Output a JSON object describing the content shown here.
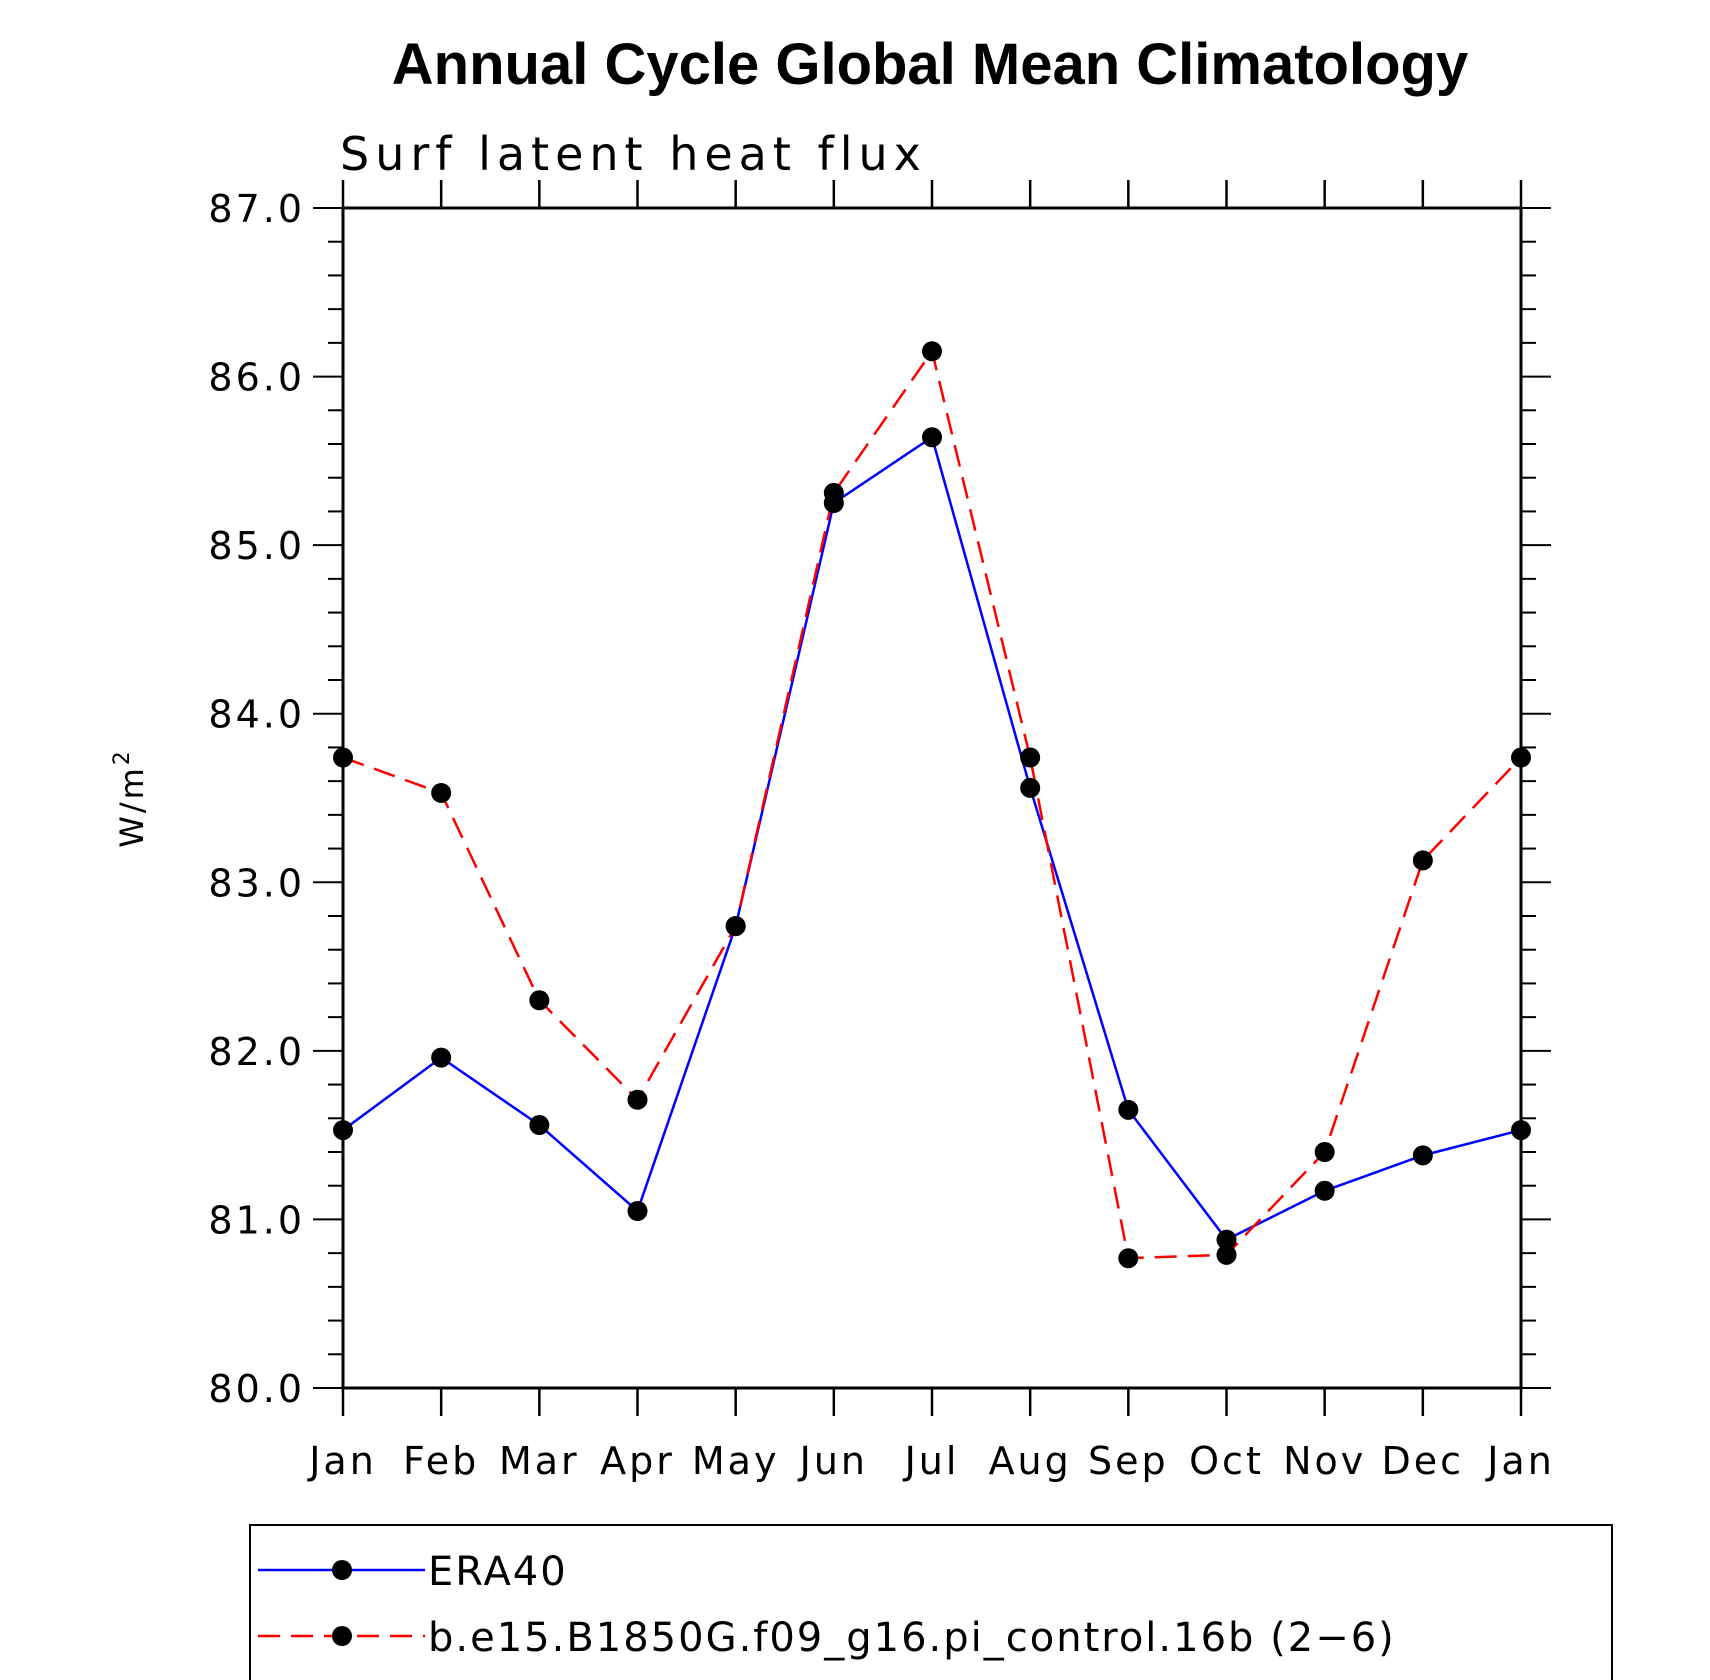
{
  "chart_data": {
    "type": "line",
    "title": "Annual Cycle Global Mean Climatology",
    "subtitle": "Surf latent heat flux",
    "ylabel": "W/m",
    "ylabel_superscript": "2",
    "categories": [
      "Jan",
      "Feb",
      "Mar",
      "Apr",
      "May",
      "Jun",
      "Jul",
      "Aug",
      "Sep",
      "Oct",
      "Nov",
      "Dec",
      "Jan"
    ],
    "ylim": [
      80.0,
      87.0
    ],
    "yticks": [
      "80.0",
      "81.0",
      "82.0",
      "83.0",
      "84.0",
      "85.0",
      "86.0",
      "87.0"
    ],
    "ytick_values": [
      80,
      81,
      82,
      83,
      84,
      85,
      86,
      87
    ],
    "grid": false,
    "legend_position": "bottom",
    "series": [
      {
        "name": "ERA40",
        "color": "#0000ff",
        "style": "solid",
        "marker": "filled-circle",
        "values": [
          81.53,
          81.96,
          81.56,
          81.05,
          82.74,
          85.25,
          85.64,
          83.56,
          81.65,
          80.88,
          81.17,
          81.38,
          81.53
        ]
      },
      {
        "name": "b.e15.B1850G.f09_g16.pi_control.16b (2−6)",
        "color": "#ff0000",
        "style": "dashed",
        "marker": "filled-circle",
        "values": [
          83.74,
          83.53,
          82.3,
          81.71,
          82.74,
          85.31,
          86.15,
          83.74,
          80.77,
          80.79,
          81.4,
          83.13,
          83.74
        ]
      }
    ]
  }
}
